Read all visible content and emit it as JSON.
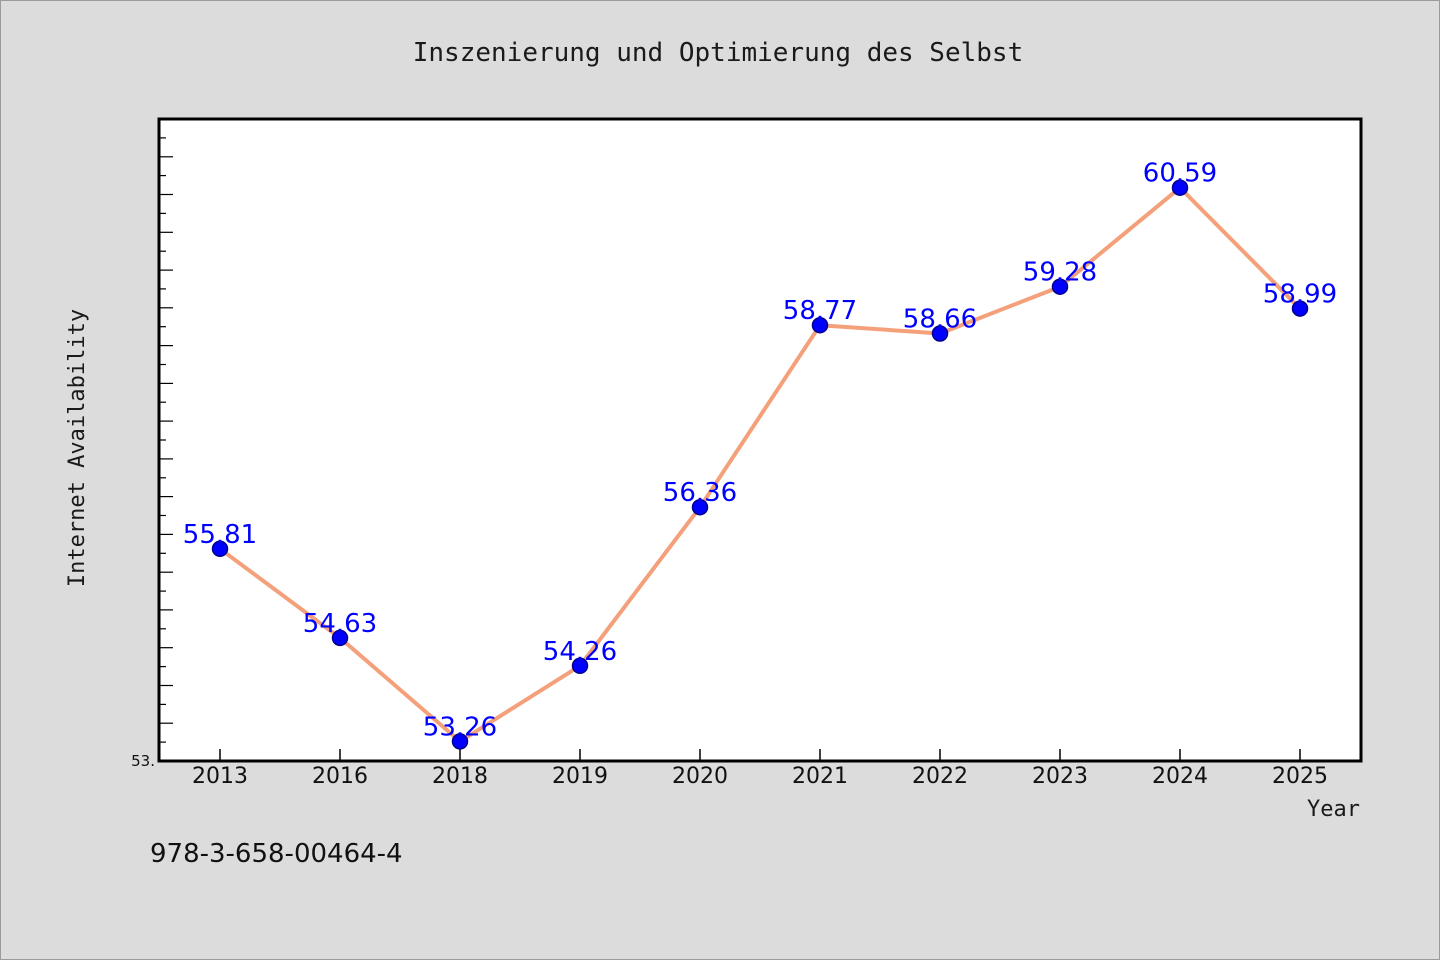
{
  "chart_data": {
    "type": "line",
    "title": "Inszenierung und Optimierung des Selbst",
    "xlabel": "Year",
    "ylabel": "Internet Availability",
    "categories": [
      "2013",
      "2016",
      "2018",
      "2019",
      "2020",
      "2021",
      "2022",
      "2023",
      "2024",
      "2025"
    ],
    "series": [
      {
        "values": [
          55.81,
          54.63,
          53.26,
          54.26,
          56.36,
          58.77,
          58.66,
          59.28,
          60.59,
          58.99
        ],
        "line_color": "#f4a07a",
        "marker_color": "#0000ff"
      }
    ],
    "data_labels": [
      "55.81",
      "54.63",
      "53.26",
      "54.26",
      "56.36",
      "58.77",
      "58.66",
      "59.28",
      "60.59",
      "58.99"
    ],
    "ylim": [
      53.0,
      61.5
    ],
    "y_axis_min_label": "53.",
    "grid": false,
    "plot_background": "#ffffff",
    "label_color": "#0000ff"
  },
  "footer_text": "978-3-658-00464-4"
}
